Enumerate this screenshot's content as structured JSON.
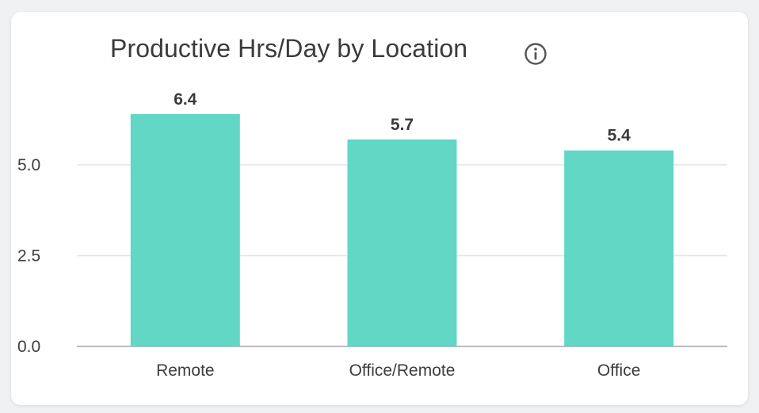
{
  "chart_data": {
    "type": "bar",
    "title": "Productive Hrs/Day by Location",
    "xlabel": "",
    "ylabel": "",
    "categories": [
      "Remote",
      "Office/Remote",
      "Office"
    ],
    "values": [
      6.4,
      5.7,
      5.4
    ],
    "value_labels": [
      "6.4",
      "5.7",
      "5.4"
    ],
    "y_ticks": [
      "0.0",
      "2.5",
      "5.0"
    ],
    "y_tick_values": [
      0,
      2.5,
      5.0
    ],
    "ylim": [
      0,
      7.25
    ],
    "grid": true,
    "legend": "none",
    "bar_color": "#62d7c6",
    "grid_color": "#e2e4e8",
    "axis_color": "#b8bbc6"
  },
  "header": {
    "icon": "info-icon"
  }
}
